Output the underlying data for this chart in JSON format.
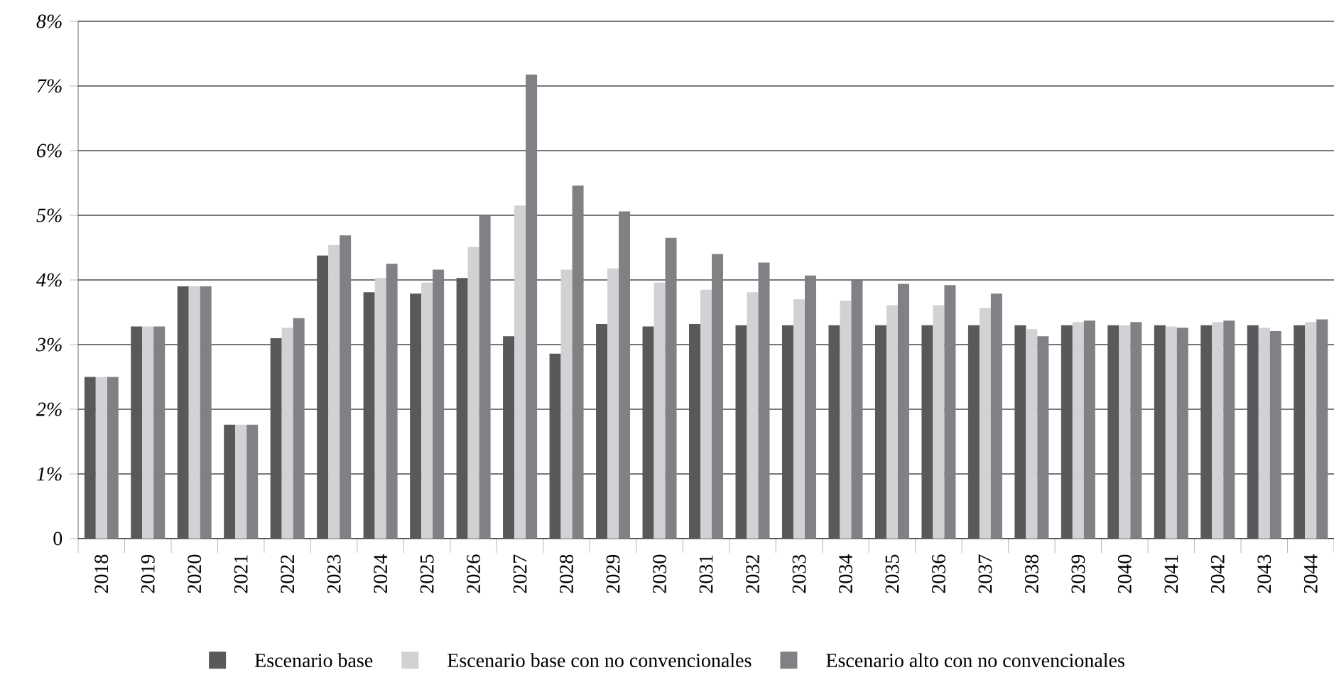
{
  "chart_data": {
    "type": "bar",
    "categories": [
      "2018",
      "2019",
      "2020",
      "2021",
      "2022",
      "2023",
      "2024",
      "2025",
      "2026",
      "2027",
      "2028",
      "2029",
      "2030",
      "2031",
      "2032",
      "2033",
      "2034",
      "2035",
      "2036",
      "2037",
      "2038",
      "2039",
      "2040",
      "2041",
      "2042",
      "2043",
      "2044"
    ],
    "series": [
      {
        "name": "Escenario base",
        "color": "#58595b",
        "values": [
          2.5,
          3.28,
          3.9,
          1.76,
          3.1,
          4.38,
          3.81,
          3.79,
          4.03,
          3.13,
          2.86,
          3.32,
          3.28,
          3.32,
          3.3,
          3.3,
          3.3,
          3.3,
          3.3,
          3.3,
          3.3,
          3.3,
          3.3,
          3.3,
          3.3,
          3.3,
          3.3
        ]
      },
      {
        "name": "Escenario base con no convencionales",
        "color": "#d1d2d4",
        "values": [
          2.5,
          3.28,
          3.9,
          1.76,
          3.26,
          4.54,
          4.03,
          3.96,
          4.51,
          5.15,
          4.16,
          4.18,
          3.96,
          3.85,
          3.81,
          3.7,
          3.68,
          3.61,
          3.61,
          3.57,
          3.24,
          3.35,
          3.3,
          3.28,
          3.35,
          3.26,
          3.35
        ]
      },
      {
        "name": "Escenario alto con no convencionales",
        "color": "#808184",
        "values": [
          2.5,
          3.28,
          3.9,
          1.76,
          3.41,
          4.69,
          4.25,
          4.16,
          4.99,
          7.18,
          5.46,
          5.06,
          4.65,
          4.4,
          4.27,
          4.07,
          3.99,
          3.94,
          3.92,
          3.79,
          3.13,
          3.37,
          3.35,
          3.26,
          3.37,
          3.21,
          3.39
        ]
      }
    ],
    "ylim": [
      0,
      8
    ],
    "yticks": [
      0,
      {
        "value": 1,
        "label": "1%"
      },
      {
        "value": 2,
        "label": "2%"
      },
      {
        "value": 3,
        "label": "3%"
      },
      {
        "value": 4,
        "label": "4%"
      },
      {
        "value": 5,
        "label": "5%"
      },
      {
        "value": 6,
        "label": "6%"
      },
      {
        "value": 7,
        "label": "7%"
      },
      {
        "value": 8,
        "label": "8%"
      }
    ],
    "grid": "y",
    "legend": "bottom"
  }
}
